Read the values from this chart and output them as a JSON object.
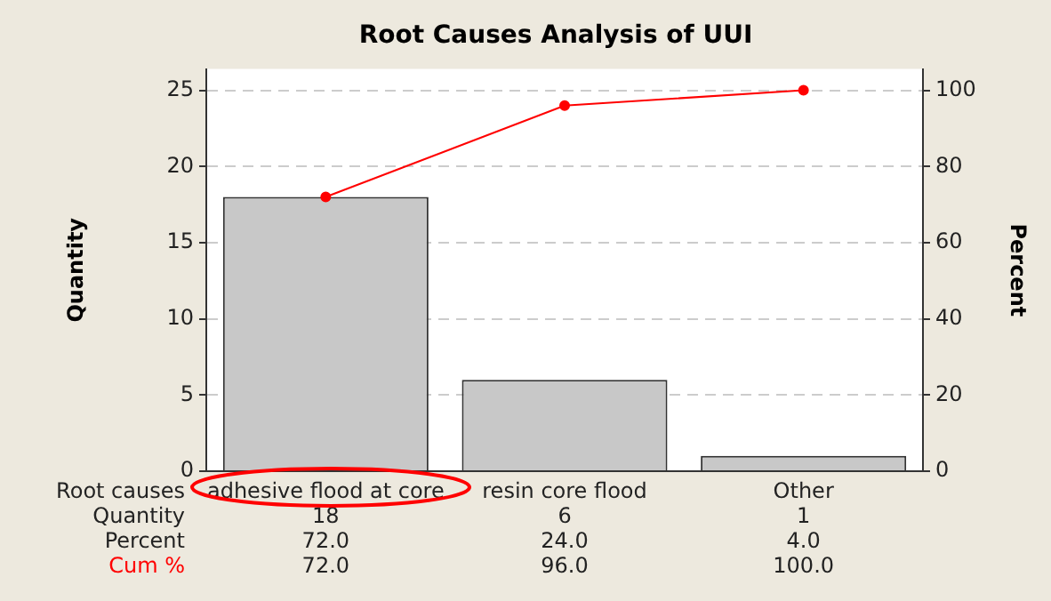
{
  "chart_data": {
    "type": "bar",
    "title": "Root Causes Analysis of UUI",
    "xlabel": "Root causes",
    "ylabel": "Quantity",
    "y2label": "Percent",
    "categories": [
      "adhesive flood at core",
      "resin core flood",
      "Other"
    ],
    "series": [
      {
        "name": "Quantity",
        "color": "#c8c8c8",
        "values": [
          18,
          6,
          1
        ],
        "value_labels": [
          "18",
          "6",
          "1"
        ]
      },
      {
        "name": "Cum %",
        "type": "line",
        "axis": "y2",
        "color": "#ff0000",
        "values": [
          72,
          96,
          100
        ],
        "value_labels": [
          "72.0",
          "96.0",
          "100.0"
        ]
      }
    ],
    "annotations": [
      "Percent",
      "72.0",
      "24.0",
      "4.0"
    ],
    "ylim": [
      0,
      26.4
    ],
    "yticks": [
      0,
      5,
      10,
      15,
      20,
      25
    ],
    "y2lim": [
      0,
      105.6
    ],
    "y2ticks": [
      0,
      20,
      40,
      60,
      80,
      100
    ],
    "grid": "y",
    "legend": false,
    "marker": "circle",
    "line_style": "solid"
  }
}
